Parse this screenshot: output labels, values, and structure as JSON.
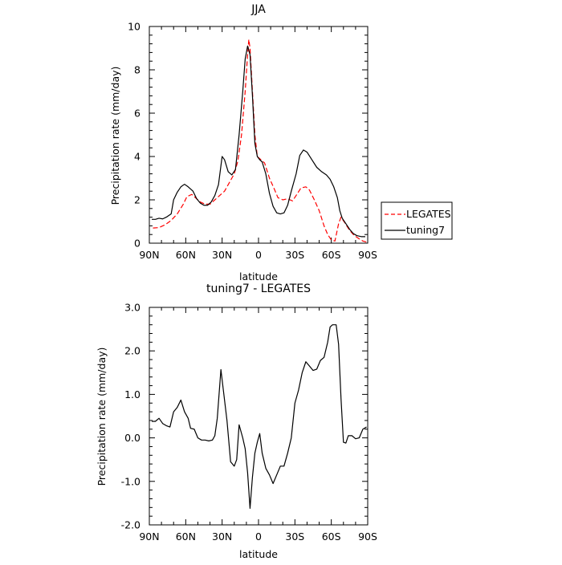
{
  "chart_data": [
    {
      "type": "line",
      "title": "JJA",
      "xlabel": "latitude",
      "ylabel": "Precipitation rate (mm/day)",
      "xlim": [
        90,
        -90
      ],
      "ylim": [
        0,
        10
      ],
      "x_ticks": [
        90,
        60,
        30,
        0,
        -30,
        -60,
        -90
      ],
      "x_tick_labels": [
        "90N",
        "60N",
        "30N",
        "0",
        "30S",
        "60S",
        "90S"
      ],
      "y_ticks": [
        0,
        2,
        4,
        6,
        8,
        10
      ],
      "y_tick_labels": [
        "0",
        "2",
        "4",
        "6",
        "8",
        "10"
      ],
      "grid": false,
      "legend_position": "right",
      "series": [
        {
          "name": "LEGATES",
          "color": "#ff0000",
          "dash": "dashed",
          "points": [
            [
              87,
              0.7
            ],
            [
              82,
              0.72
            ],
            [
              77,
              0.85
            ],
            [
              72,
              1.05
            ],
            [
              67,
              1.35
            ],
            [
              62,
              1.8
            ],
            [
              59,
              2.15
            ],
            [
              55,
              2.25
            ],
            [
              52,
              2.1
            ],
            [
              48,
              1.9
            ],
            [
              44,
              1.8
            ],
            [
              40,
              1.8
            ],
            [
              36,
              2.0
            ],
            [
              32,
              2.2
            ],
            [
              28,
              2.4
            ],
            [
              24,
              2.8
            ],
            [
              20,
              3.2
            ],
            [
              17,
              3.8
            ],
            [
              14,
              5.0
            ],
            [
              11,
              7.0
            ],
            [
              9,
              8.7
            ],
            [
              8,
              9.4
            ],
            [
              7,
              9.0
            ],
            [
              5,
              7.0
            ],
            [
              3,
              5.0
            ],
            [
              1,
              4.0
            ],
            [
              -2,
              3.85
            ],
            [
              -5,
              3.7
            ],
            [
              -9,
              3.0
            ],
            [
              -13,
              2.5
            ],
            [
              -16,
              2.1
            ],
            [
              -20,
              2.0
            ],
            [
              -24,
              2.05
            ],
            [
              -28,
              1.95
            ],
            [
              -31,
              2.2
            ],
            [
              -35,
              2.55
            ],
            [
              -39,
              2.6
            ],
            [
              -42,
              2.45
            ],
            [
              -46,
              2.0
            ],
            [
              -50,
              1.5
            ],
            [
              -54,
              0.8
            ],
            [
              -57,
              0.4
            ],
            [
              -60,
              0.15
            ],
            [
              -63,
              0.1
            ],
            [
              -66,
              0.9
            ],
            [
              -68,
              1.2
            ],
            [
              -71,
              0.95
            ],
            [
              -75,
              0.6
            ],
            [
              -79,
              0.35
            ],
            [
              -83,
              0.2
            ],
            [
              -86,
              0.1
            ],
            [
              -89,
              0.05
            ]
          ]
        },
        {
          "name": "tuning7",
          "color": "#000000",
          "dash": "solid",
          "points": [
            [
              88,
              1.1
            ],
            [
              85,
              1.1
            ],
            [
              82,
              1.15
            ],
            [
              79,
              1.12
            ],
            [
              76,
              1.2
            ],
            [
              72,
              1.35
            ],
            [
              70,
              2.0
            ],
            [
              67,
              2.35
            ],
            [
              64,
              2.6
            ],
            [
              61,
              2.72
            ],
            [
              58,
              2.6
            ],
            [
              54,
              2.4
            ],
            [
              51,
              2.05
            ],
            [
              48,
              1.85
            ],
            [
              45,
              1.75
            ],
            [
              42,
              1.75
            ],
            [
              39,
              1.9
            ],
            [
              36,
              2.2
            ],
            [
              33,
              2.7
            ],
            [
              30,
              4.0
            ],
            [
              28,
              3.85
            ],
            [
              25,
              3.3
            ],
            [
              22,
              3.15
            ],
            [
              19,
              3.4
            ],
            [
              16,
              5.0
            ],
            [
              13,
              7.0
            ],
            [
              11,
              8.5
            ],
            [
              9,
              9.1
            ],
            [
              7,
              8.7
            ],
            [
              5,
              6.8
            ],
            [
              3,
              4.6
            ],
            [
              1,
              4.0
            ],
            [
              -1,
              3.85
            ],
            [
              -3,
              3.75
            ],
            [
              -6,
              3.2
            ],
            [
              -9,
              2.3
            ],
            [
              -12,
              1.7
            ],
            [
              -15,
              1.4
            ],
            [
              -18,
              1.35
            ],
            [
              -21,
              1.4
            ],
            [
              -24,
              1.75
            ],
            [
              -27,
              2.4
            ],
            [
              -31,
              3.2
            ],
            [
              -34,
              4.05
            ],
            [
              -37,
              4.3
            ],
            [
              -40,
              4.2
            ],
            [
              -44,
              3.85
            ],
            [
              -48,
              3.5
            ],
            [
              -52,
              3.3
            ],
            [
              -56,
              3.15
            ],
            [
              -59,
              2.95
            ],
            [
              -62,
              2.6
            ],
            [
              -65,
              2.1
            ],
            [
              -67,
              1.5
            ],
            [
              -69,
              1.15
            ],
            [
              -72,
              0.9
            ],
            [
              -75,
              0.65
            ],
            [
              -78,
              0.45
            ],
            [
              -81,
              0.35
            ],
            [
              -85,
              0.3
            ],
            [
              -88,
              0.3
            ]
          ]
        }
      ]
    },
    {
      "type": "line",
      "title": "tuning7 - LEGATES",
      "xlabel": "latitude",
      "ylabel": "Precipitation rate (mm/day)",
      "xlim": [
        90,
        -90
      ],
      "ylim": [
        -2,
        3
      ],
      "x_ticks": [
        90,
        60,
        30,
        0,
        -30,
        -60,
        -90
      ],
      "x_tick_labels": [
        "90N",
        "60N",
        "30N",
        "0",
        "30S",
        "60S",
        "90S"
      ],
      "y_ticks": [
        -2,
        -1,
        0,
        1,
        2,
        3
      ],
      "y_tick_labels": [
        "-2.0",
        "-1.0",
        "0.0",
        "1.0",
        "2.0",
        "3.0"
      ],
      "grid": false,
      "series": [
        {
          "color": "#000000",
          "dash": "solid",
          "points": [
            [
              88,
              0.38
            ],
            [
              85,
              0.38
            ],
            [
              82,
              0.45
            ],
            [
              79,
              0.33
            ],
            [
              76,
              0.28
            ],
            [
              73,
              0.25
            ],
            [
              70,
              0.6
            ],
            [
              67,
              0.7
            ],
            [
              64,
              0.87
            ],
            [
              61,
              0.6
            ],
            [
              58,
              0.45
            ],
            [
              56,
              0.22
            ],
            [
              53,
              0.2
            ],
            [
              50,
              0.0
            ],
            [
              47,
              -0.05
            ],
            [
              44,
              -0.05
            ],
            [
              41,
              -0.07
            ],
            [
              38,
              -0.05
            ],
            [
              36,
              0.05
            ],
            [
              34,
              0.45
            ],
            [
              31,
              1.57
            ],
            [
              29,
              1.1
            ],
            [
              26,
              0.4
            ],
            [
              23,
              -0.55
            ],
            [
              20,
              -0.65
            ],
            [
              18,
              -0.5
            ],
            [
              16,
              0.3
            ],
            [
              13,
              0.0
            ],
            [
              11,
              -0.25
            ],
            [
              9,
              -0.8
            ],
            [
              7,
              -1.62
            ],
            [
              5,
              -0.9
            ],
            [
              3,
              -0.35
            ],
            [
              1,
              -0.1
            ],
            [
              -1,
              0.1
            ],
            [
              -3,
              -0.35
            ],
            [
              -6,
              -0.7
            ],
            [
              -9,
              -0.85
            ],
            [
              -12,
              -1.05
            ],
            [
              -15,
              -0.85
            ],
            [
              -18,
              -0.65
            ],
            [
              -21,
              -0.65
            ],
            [
              -24,
              -0.35
            ],
            [
              -27,
              0.0
            ],
            [
              -30,
              0.8
            ],
            [
              -33,
              1.1
            ],
            [
              -36,
              1.5
            ],
            [
              -39,
              1.75
            ],
            [
              -42,
              1.65
            ],
            [
              -45,
              1.55
            ],
            [
              -48,
              1.58
            ],
            [
              -51,
              1.78
            ],
            [
              -54,
              1.85
            ],
            [
              -57,
              2.2
            ],
            [
              -59,
              2.55
            ],
            [
              -61,
              2.6
            ],
            [
              -64,
              2.6
            ],
            [
              -66,
              2.15
            ],
            [
              -68,
              0.9
            ],
            [
              -70,
              -0.1
            ],
            [
              -72,
              -0.12
            ],
            [
              -74,
              0.05
            ],
            [
              -77,
              0.05
            ],
            [
              -80,
              -0.02
            ],
            [
              -83,
              0.0
            ],
            [
              -86,
              0.2
            ],
            [
              -89,
              0.25
            ]
          ]
        }
      ]
    }
  ]
}
